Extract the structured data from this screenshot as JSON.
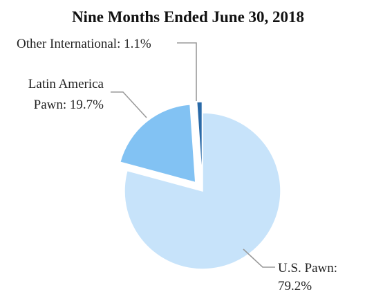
{
  "chart_data": {
    "type": "pie",
    "title": "Nine Months Ended June 30, 2018",
    "slices": [
      {
        "label": "U.S. Pawn:",
        "value_label": "79.2%",
        "value": 79.2,
        "color": "#c7e3fa",
        "exploded": false
      },
      {
        "label": "Latin America",
        "value_label": "Pawn: 19.7%",
        "value": 19.7,
        "color": "#82c2f3",
        "exploded": true
      },
      {
        "label": "Other International: 1.1%",
        "value_label": "",
        "value": 1.1,
        "color": "#2a6aa8",
        "exploded": true
      }
    ],
    "legend": "none"
  }
}
